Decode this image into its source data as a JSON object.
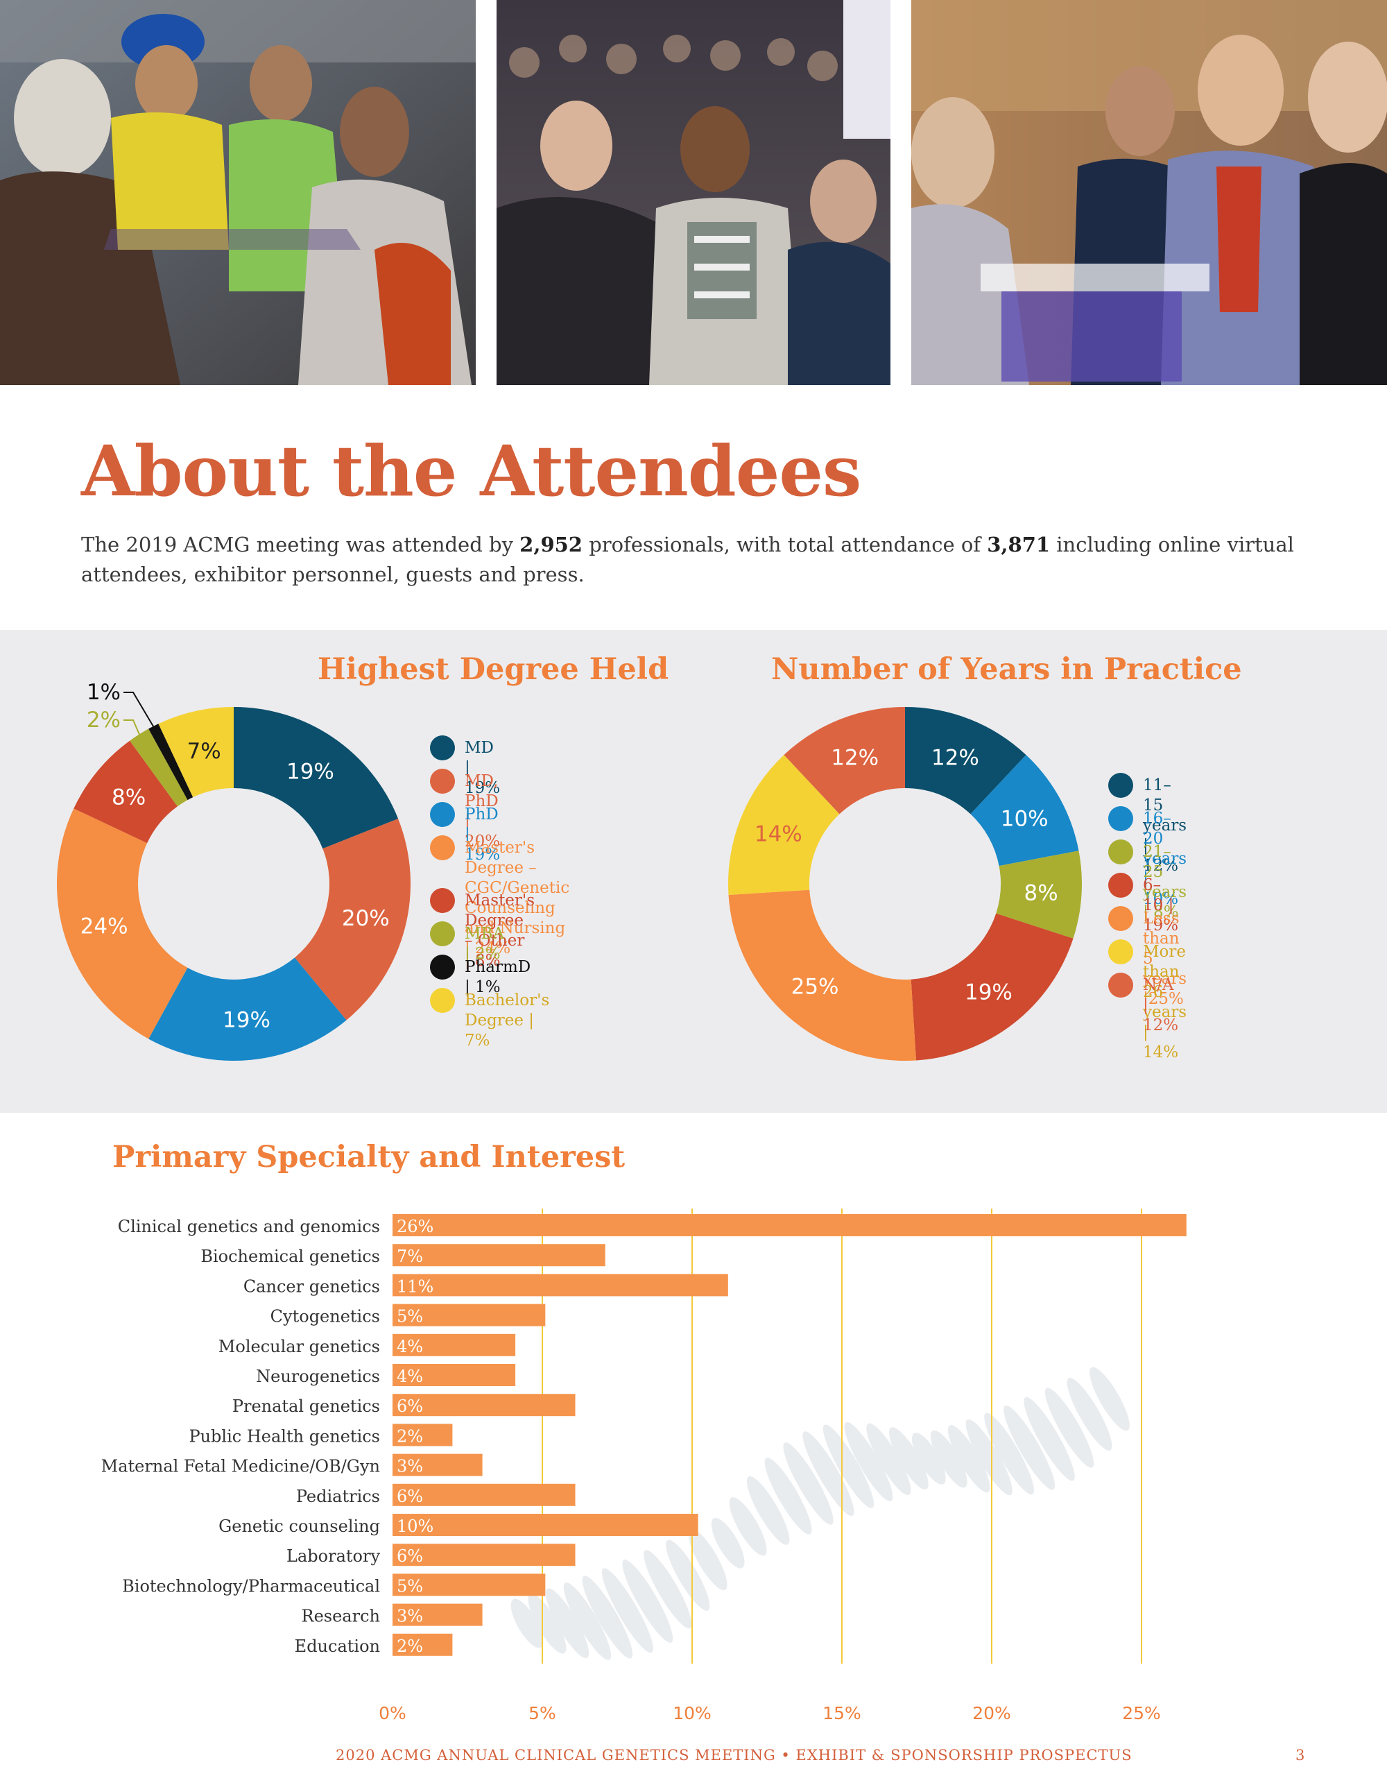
{
  "photos": [
    {
      "name": "attendees-greeting-photo"
    },
    {
      "name": "attendees-conversation-photo"
    },
    {
      "name": "attendees-exhibit-booth-photo"
    }
  ],
  "page_title": "About the Attendees",
  "intro": {
    "part1": "The 2019 ACMG meeting was attended by ",
    "professionals": "2,952",
    "part2": " professionals, with total attendance of ",
    "total": "3,871",
    "part3": " including online virtual attendees, exhibitor personnel, guests and press."
  },
  "chart_data": [
    {
      "type": "pie",
      "title": "Highest Degree Held",
      "unit": "%",
      "slices": [
        {
          "label": "MD",
          "legend": "MD | 19%",
          "value": 19,
          "display": "19%",
          "color": "#0b4f6c"
        },
        {
          "label": "MD, PhD",
          "legend": "MD, PhD | 20%",
          "value": 20,
          "display": "20%",
          "color": "#dd6440"
        },
        {
          "label": "PhD",
          "legend": "PhD | 19%",
          "value": 19,
          "display": "19%",
          "color": "#1888c8"
        },
        {
          "label": "Master's Degree – CGC/Genetic Counseling and Nursing",
          "legend": "Master's Degree – CGC/Genetic\nCounseling and Nursing | 24%",
          "value": 24,
          "display": "24%",
          "color": "#f58d42"
        },
        {
          "label": "Master's Degree – Other",
          "legend": "Master's Degree – Other | 8%",
          "value": 8,
          "display": "8%",
          "color": "#cf4a2e"
        },
        {
          "label": "MBA",
          "legend": "MBA | 2%",
          "value": 2,
          "display": "2%",
          "color": "#a9ae31"
        },
        {
          "label": "PharmD",
          "legend": "PharmD | 1%",
          "value": 1,
          "display": "1%",
          "color": "#111111"
        },
        {
          "label": "Bachelor's Degree",
          "legend": "Bachelor's Degree | 7%",
          "value": 7,
          "display": "7%",
          "color": "#f4d233"
        }
      ]
    },
    {
      "type": "pie",
      "title": "Number of Years in Practice",
      "unit": "%",
      "slices": [
        {
          "label": "11–15 years",
          "legend": "11–15 years | 12%",
          "value": 12,
          "display": "12%",
          "color": "#0b4f6c"
        },
        {
          "label": "16–20 years",
          "legend": "16–20 years | 10%",
          "value": 10,
          "display": "10%",
          "color": "#1888c8"
        },
        {
          "label": "21–25 years",
          "legend": "21–25 years | 8%",
          "value": 8,
          "display": "8%",
          "color": "#a9ae31"
        },
        {
          "label": "6–10",
          "legend": "6–10 | 19%",
          "value": 19,
          "display": "19%",
          "color": "#cf4a2e"
        },
        {
          "label": "Less than 5 years",
          "legend": "Less than 5 years |25%",
          "value": 25,
          "display": "25%",
          "color": "#f58d42"
        },
        {
          "label": "More than 26 years",
          "legend": "More than 26 years | 14%",
          "value": 14,
          "display": "14%",
          "color": "#f4d233"
        },
        {
          "label": "N/A",
          "legend": "N/A | 12%",
          "value": 12,
          "display": "12%",
          "color": "#dd6440"
        }
      ]
    },
    {
      "type": "bar",
      "orientation": "horizontal",
      "title": "Primary Specialty and Interest",
      "xlim": [
        0,
        25
      ],
      "xticks": [
        "0%",
        "5%",
        "10%",
        "15%",
        "20%",
        "25%"
      ],
      "tick_values": [
        0,
        5,
        10,
        15,
        20,
        25
      ],
      "grid": true,
      "bar_color": "#f5954d",
      "categories": [
        "Clinical genetics and genomics",
        "Biochemical genetics",
        "Cancer genetics",
        "Cytogenetics",
        "Molecular genetics",
        "Neurogenetics",
        "Prenatal genetics",
        "Public Health genetics",
        "Maternal Fetal Medicine/OB/Gyn",
        "Pediatrics",
        "Genetic counseling",
        "Laboratory",
        "Biotechnology/Pharmaceutical",
        "Research",
        "Education"
      ],
      "values": [
        26.5,
        7.1,
        11.2,
        5.1,
        4.1,
        4.1,
        6.1,
        2.0,
        3.0,
        6.1,
        10.2,
        6.1,
        5.1,
        3.0,
        2.0
      ],
      "value_labels": [
        "26%",
        "7%",
        "11%",
        "5%",
        "4%",
        "4%",
        "6%",
        "2%",
        "3%",
        "6%",
        "10%",
        "6%",
        "5%",
        "3%",
        "2%"
      ]
    }
  ],
  "footer": "2020 ACMG ANNUAL CLINICAL GENETICS MEETING  •  EXHIBIT & SPONSORSHIP PROSPECTUS",
  "page_number": "3"
}
